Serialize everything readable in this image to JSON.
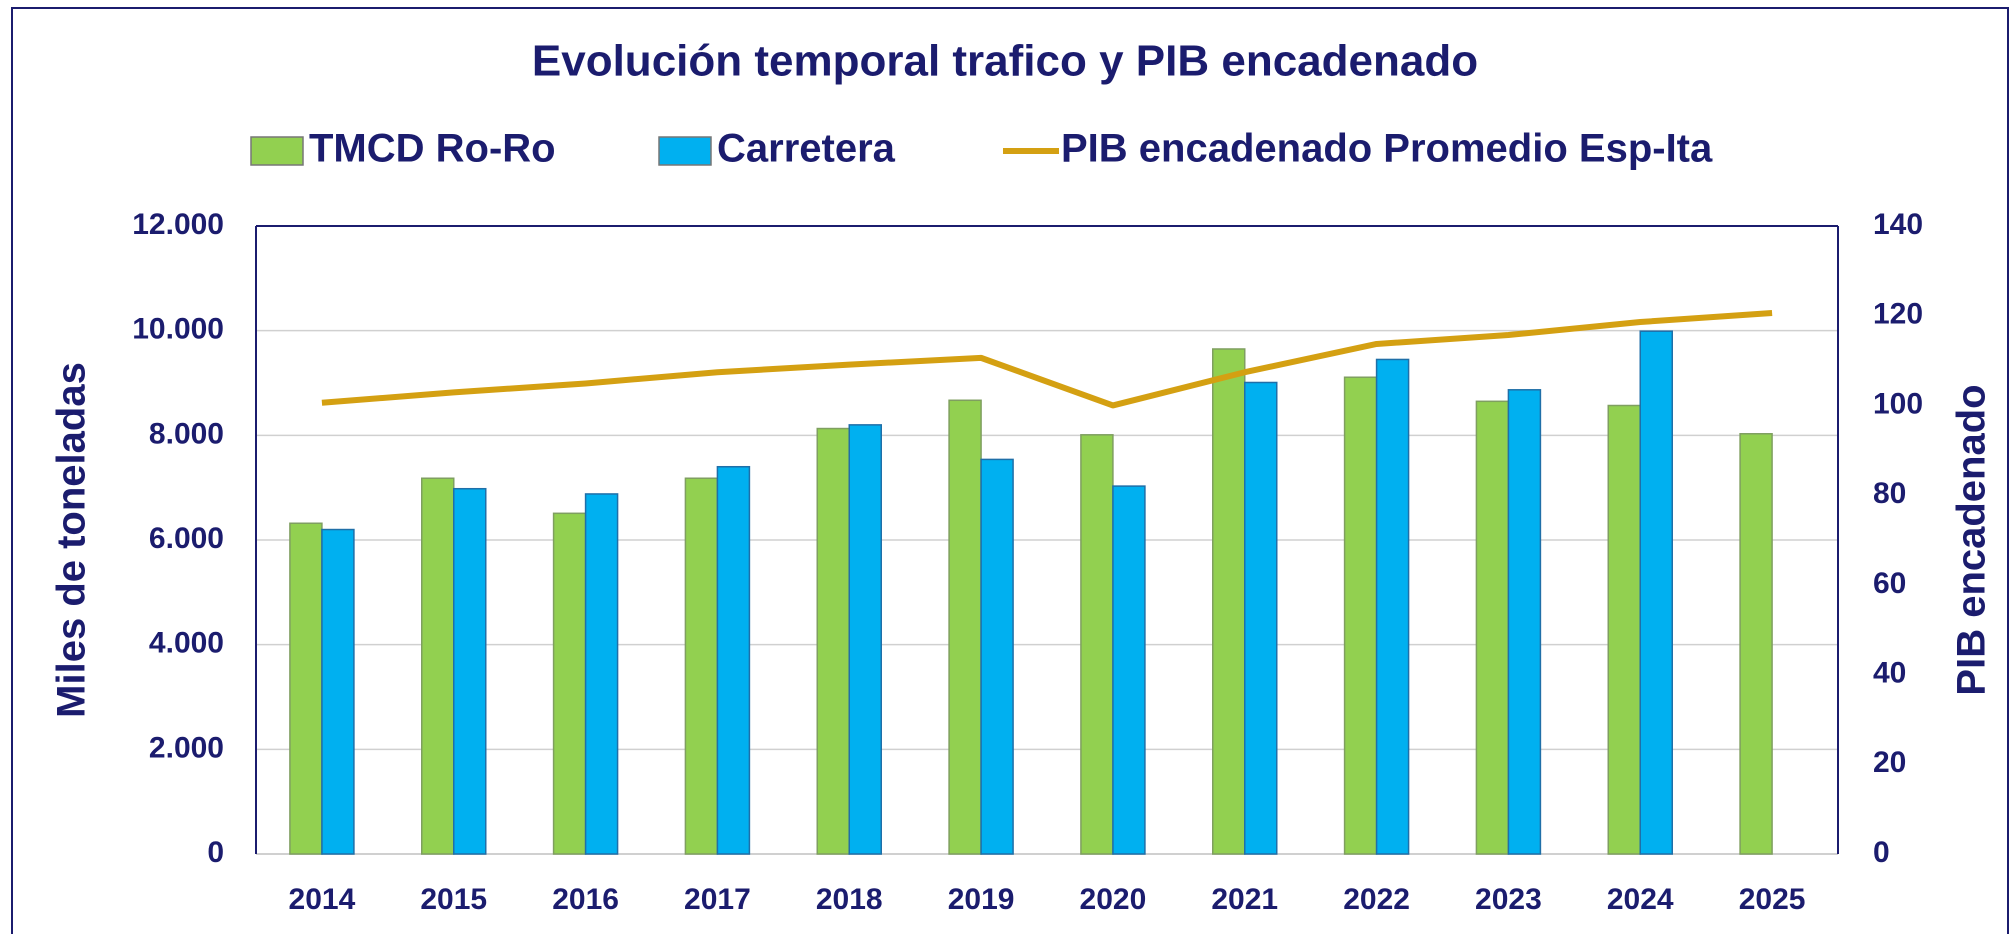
{
  "chart_data": {
    "type": "bar",
    "title": "Evolución temporal trafico y PIB encadenado",
    "categories": [
      "2014",
      "2015",
      "2016",
      "2017",
      "2018",
      "2019",
      "2020",
      "2021",
      "2022",
      "2023",
      "2024",
      "2025"
    ],
    "series": [
      {
        "name": "TMCD Ro-Ro",
        "color": "#92d050",
        "type": "bar",
        "values": [
          6320,
          7180,
          6510,
          7180,
          8130,
          8670,
          8010,
          9650,
          9110,
          8650,
          8570,
          8030
        ]
      },
      {
        "name": "Carretera",
        "color": "#00b0f0",
        "type": "bar",
        "values": [
          6200,
          6980,
          6880,
          7400,
          8200,
          7540,
          7030,
          9010,
          9450,
          8870,
          9990,
          null
        ]
      },
      {
        "name": "PIB encadenado Promedio Esp-Ita",
        "color": "#d4a012",
        "type": "line",
        "axis": "y2",
        "values": [
          100.6,
          102.9,
          104.9,
          107.4,
          109.1,
          110.6,
          100,
          107.4,
          113.7,
          115.7,
          118.6,
          120.6
        ]
      }
    ],
    "y_label": "Miles de toneladas",
    "y2_label": "PIB encadenado",
    "ylim": [
      0,
      12000
    ],
    "yticks": [
      {
        "value": 0,
        "label": "0"
      },
      {
        "value": 2000,
        "label": "2.000"
      },
      {
        "value": 4000,
        "label": "4.000"
      },
      {
        "value": 6000,
        "label": "6.000"
      },
      {
        "value": 8000,
        "label": "8.000"
      },
      {
        "value": 10000,
        "label": "10.000"
      },
      {
        "value": 12000,
        "label": "12.000"
      }
    ],
    "y2lim": [
      0,
      140
    ],
    "y2ticks": [
      0,
      20,
      40,
      60,
      80,
      100,
      120,
      140
    ],
    "grid": true,
    "legend": "top"
  }
}
